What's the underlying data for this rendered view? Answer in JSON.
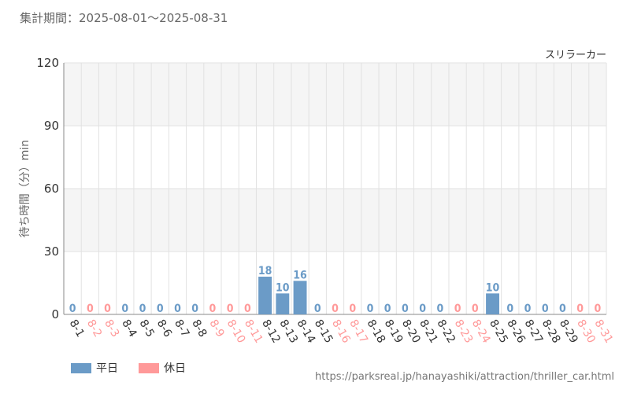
{
  "header": {
    "period": "集計期間：2025-08-01～2025-08-31"
  },
  "footer": {
    "source": "https://parksreal.jp/hanayashiki/attraction/thriller_car.html"
  },
  "colors": {
    "weekday": "#6b9bc7",
    "holiday": "#ff9999",
    "grid": "#e2e2e2",
    "band": "#f5f5f5"
  },
  "chart_data": {
    "type": "bar",
    "subtitle": "スリラーカー",
    "ylabel": "待ち時間（分）min",
    "ylim": [
      0,
      120
    ],
    "yticks": [
      0,
      30,
      60,
      90,
      120
    ],
    "categories": [
      "8-1",
      "8-2",
      "8-3",
      "8-4",
      "8-5",
      "8-6",
      "8-7",
      "8-8",
      "8-9",
      "8-10",
      "8-11",
      "8-12",
      "8-13",
      "8-14",
      "8-15",
      "8-16",
      "8-17",
      "8-18",
      "8-19",
      "8-20",
      "8-21",
      "8-22",
      "8-23",
      "8-24",
      "8-25",
      "8-26",
      "8-27",
      "8-28",
      "8-29",
      "8-30",
      "8-31"
    ],
    "values": [
      0,
      0,
      0,
      0,
      0,
      0,
      0,
      0,
      0,
      0,
      0,
      18,
      10,
      16,
      0,
      0,
      0,
      0,
      0,
      0,
      0,
      0,
      0,
      0,
      10,
      0,
      0,
      0,
      0,
      0,
      0
    ],
    "day_type": [
      "weekday",
      "holiday",
      "holiday",
      "weekday",
      "weekday",
      "weekday",
      "weekday",
      "weekday",
      "holiday",
      "holiday",
      "holiday",
      "weekday",
      "weekday",
      "weekday",
      "weekday",
      "holiday",
      "holiday",
      "weekday",
      "weekday",
      "weekday",
      "weekday",
      "weekday",
      "holiday",
      "holiday",
      "weekday",
      "weekday",
      "weekday",
      "weekday",
      "weekday",
      "holiday",
      "holiday"
    ],
    "legend": [
      {
        "key": "weekday",
        "label": "平日"
      },
      {
        "key": "holiday",
        "label": "休日"
      }
    ]
  }
}
